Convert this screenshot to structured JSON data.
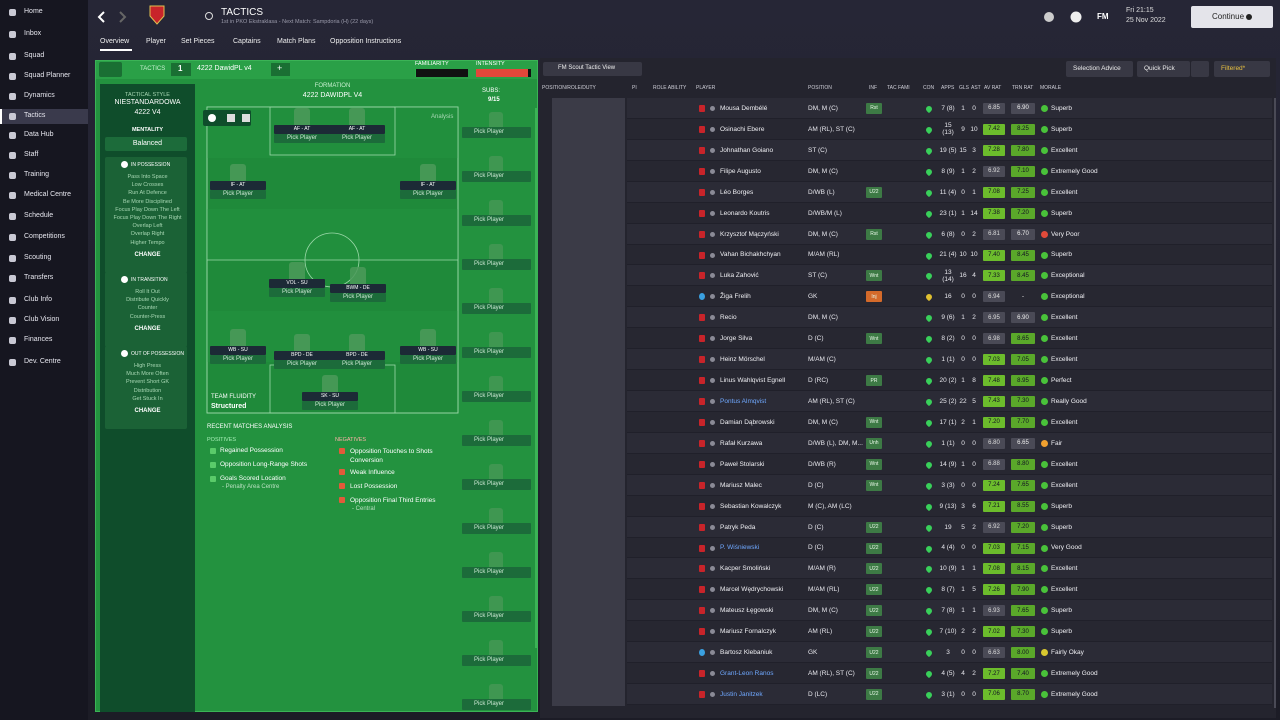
{
  "sidebar": {
    "items": [
      "Home",
      "Inbox",
      "Squad",
      "Squad Planner",
      "Dynamics",
      "Tactics",
      "Data Hub",
      "Staff",
      "Training",
      "Medical Centre",
      "Schedule",
      "Competitions",
      "Scouting",
      "Transfers",
      "Club Info",
      "Club Vision",
      "Finances",
      "Dev. Centre"
    ],
    "active": 5
  },
  "header": {
    "title": "TACTICS",
    "subtitle": "1st in PKO Ekstraklasa - Next Match: Sampdoria (H) (22 days)",
    "logo": "FM",
    "time": "Fri 21:15",
    "date": "25 Nov 2022",
    "continue": "Continue"
  },
  "tabs": {
    "items": [
      "Overview",
      "Player",
      "Set Pieces",
      "Captains",
      "Match Plans",
      "Opposition Instructions"
    ],
    "active": 0
  },
  "tactic_bar": {
    "label": "TACTICS",
    "slot": "1",
    "name": "4222 DawidPL v4",
    "add": "+",
    "familiarity_label": "FAMILIARITY",
    "familiarity": 2,
    "intensity_label": "INTENSITY",
    "intensity": 95
  },
  "style_panel": {
    "tactical_style_label": "TACTICAL STYLE",
    "tactical_style": "NIESTANDARDOWA",
    "tactic_code": "4222 V4",
    "mentality_label": "MENTALITY",
    "mentality": "Balanced",
    "sections": [
      {
        "title": "IN POSSESSION",
        "items": [
          "Pass Into Space",
          "Low Crosses",
          "Run At Defence",
          "Be More Disciplined",
          "Focus Play Down The Left",
          "Focus Play Down The Right",
          "Overlap Left",
          "Overlap Right",
          "Higher Tempo"
        ],
        "button": "CHANGE"
      },
      {
        "title": "IN TRANSITION",
        "items": [
          "Roll It Out",
          "Distribute Quickly",
          "Counter",
          "Counter-Press"
        ],
        "button": "CHANGE"
      },
      {
        "title": "OUT OF POSSESSION",
        "items": [
          "High Press",
          "Much More Often",
          "Prevent Short GK",
          "Distribution",
          "Get Stuck In"
        ],
        "button": "CHANGE"
      }
    ]
  },
  "formation": {
    "label": "FORMATION",
    "name": "4222 DAWIDPL V4",
    "subs_label": "SUBS:",
    "subs_count": "9/15",
    "analysis": "Analysis",
    "positions": [
      {
        "role": "AF - AT",
        "pick": "Pick Player"
      },
      {
        "role": "AF - AT",
        "pick": "Pick Player"
      },
      {
        "role": "IF - AT",
        "pick": "Pick Player"
      },
      {
        "role": "IF - AT",
        "pick": "Pick Player"
      },
      {
        "role": "VOL - SU",
        "pick": "Pick Player"
      },
      {
        "role": "BWM - DE",
        "pick": "Pick Player"
      },
      {
        "role": "WB - SU",
        "pick": "Pick Player"
      },
      {
        "role": "BPD - DE",
        "pick": "Pick Player"
      },
      {
        "role": "BPD - DE",
        "pick": "Pick Player"
      },
      {
        "role": "WB - SU",
        "pick": "Pick Player"
      },
      {
        "role": "SK - SU",
        "pick": "Pick Player"
      }
    ],
    "subs": [
      "Pick Player",
      "Pick Player",
      "Pick Player",
      "Pick Player",
      "Pick Player",
      "Pick Player",
      "Pick Player",
      "Pick Player",
      "Pick Player",
      "Pick Player",
      "Pick Player",
      "Pick Player",
      "Pick Player",
      "Pick Player"
    ],
    "fluidity_label": "TEAM FLUIDITY",
    "fluidity": "Structured"
  },
  "analysis": {
    "title": "RECENT MATCHES ANALYSIS",
    "positives_label": "POSITIVES",
    "positives": [
      {
        "text": "Regained Possession"
      },
      {
        "text": "Opposition Long-Range Shots"
      },
      {
        "text": "Goals Scored Location",
        "detail": "- Penalty Area Centre"
      }
    ],
    "negatives_label": "NEGATIVES",
    "negatives": [
      {
        "text": "Opposition Touches to Shots Conversion"
      },
      {
        "text": "Weak Influence"
      },
      {
        "text": "Lost Possession"
      },
      {
        "text": "Opposition Final Third Entries",
        "detail": "- Central"
      }
    ]
  },
  "squad": {
    "view": "FM Scout Tactic View",
    "buttons": [
      "Selection Advice",
      "Quick Pick",
      "Filtered*"
    ],
    "columns": [
      "POSITION/ROLE/DUTY",
      "PI",
      "ROLE ABILITY",
      "PLAYER",
      "POSITION",
      "INF",
      "TAC FAMI",
      "CON",
      "APPS",
      "GLS",
      "AST",
      "AV RAT",
      "TRN RAT",
      "MORALE"
    ],
    "rows": [
      {
        "name": "Mousa Dembélé",
        "position": "DM, M (C)",
        "inf": "Rst",
        "apps": "7 (8)",
        "gls": "1",
        "ast": "0",
        "av_rat": "6.85",
        "trn_rat": "6.90",
        "morale": "Superb",
        "morale_color": "#49c23a"
      },
      {
        "name": "Osinachi Ebere",
        "position": "AM (RL), ST (C)",
        "apps": "15 (13)",
        "gls": "9",
        "ast": "10",
        "av_rat": "7.42",
        "trn_rat": "8.25",
        "morale": "Superb",
        "morale_color": "#49c23a"
      },
      {
        "name": "Johnathan Goiano",
        "position": "ST (C)",
        "apps": "19 (5)",
        "gls": "15",
        "ast": "3",
        "av_rat": "7.28",
        "trn_rat": "7.80",
        "morale": "Excellent",
        "morale_color": "#49c23a"
      },
      {
        "name": "Filipe Augusto",
        "position": "DM, M (C)",
        "apps": "8 (9)",
        "gls": "1",
        "ast": "2",
        "av_rat": "6.92",
        "trn_rat": "7.10",
        "morale": "Extremely Good",
        "morale_color": "#49c23a"
      },
      {
        "name": "Léo Borges",
        "position": "D/WB (L)",
        "inf": "U22",
        "apps": "11 (4)",
        "gls": "0",
        "ast": "1",
        "av_rat": "7.08",
        "trn_rat": "7.25",
        "morale": "Excellent",
        "morale_color": "#49c23a"
      },
      {
        "name": "Leonardo Koutris",
        "position": "D/WB/M (L)",
        "apps": "23 (1)",
        "gls": "1",
        "ast": "14",
        "av_rat": "7.38",
        "trn_rat": "7.20",
        "morale": "Superb",
        "morale_color": "#49c23a"
      },
      {
        "name": "Krzysztof Mączyński",
        "position": "DM, M (C)",
        "inf": "Rst",
        "apps": "6 (8)",
        "gls": "0",
        "ast": "2",
        "av_rat": "6.81",
        "trn_rat": "6.70",
        "morale": "Very Poor",
        "morale_color": "#e04a3a"
      },
      {
        "name": "Vahan Bichakhchyan",
        "position": "M/AM (RL)",
        "apps": "21 (4)",
        "gls": "10",
        "ast": "10",
        "av_rat": "7.40",
        "trn_rat": "8.45",
        "morale": "Superb",
        "morale_color": "#49c23a"
      },
      {
        "name": "Luka Zahović",
        "position": "ST (C)",
        "inf": "Wnt",
        "apps": "13 (14)",
        "gls": "16",
        "ast": "4",
        "av_rat": "7.33",
        "trn_rat": "8.45",
        "morale": "Exceptional",
        "morale_color": "#49c23a"
      },
      {
        "name": "Žiga Frelih",
        "position": "GK",
        "inf": "Inj",
        "apps": "16",
        "gls": "0",
        "ast": "0",
        "av_rat": "6.94",
        "trn_rat": "-",
        "morale": "Exceptional",
        "morale_color": "#49c23a"
      },
      {
        "name": "Recio",
        "position": "DM, M (C)",
        "apps": "9 (6)",
        "gls": "1",
        "ast": "2",
        "av_rat": "6.95",
        "trn_rat": "6.90",
        "morale": "Excellent",
        "morale_color": "#49c23a"
      },
      {
        "name": "Jorge Silva",
        "position": "D (C)",
        "inf": "Wnt",
        "apps": "8 (2)",
        "gls": "0",
        "ast": "0",
        "av_rat": "6.98",
        "trn_rat": "8.65",
        "morale": "Excellent",
        "morale_color": "#49c23a"
      },
      {
        "name": "Heinz Mörschel",
        "position": "M/AM (C)",
        "apps": "1 (1)",
        "gls": "0",
        "ast": "0",
        "av_rat": "7.03",
        "trn_rat": "7.05",
        "morale": "Excellent",
        "morale_color": "#49c23a"
      },
      {
        "name": "Linus Wahlqvist Egnell",
        "position": "D (RC)",
        "inf": "PR",
        "apps": "20 (2)",
        "gls": "1",
        "ast": "8",
        "av_rat": "7.48",
        "trn_rat": "8.95",
        "morale": "Perfect",
        "morale_color": "#49c23a"
      },
      {
        "name": "Pontus Almqvist",
        "name_color": "#6fa8ff",
        "position": "AM (RL), ST (C)",
        "apps": "25 (2)",
        "gls": "22",
        "ast": "5",
        "av_rat": "7.43",
        "trn_rat": "7.30",
        "morale": "Really Good",
        "morale_color": "#49c23a"
      },
      {
        "name": "Damian Dąbrowski",
        "position": "DM, M (C)",
        "inf": "Wnt",
        "apps": "17 (1)",
        "gls": "2",
        "ast": "1",
        "av_rat": "7.20",
        "trn_rat": "7.70",
        "morale": "Excellent",
        "morale_color": "#49c23a"
      },
      {
        "name": "Rafał Kurzawa",
        "position": "D/WB (L), DM, M...",
        "inf": "Unh",
        "apps": "1 (1)",
        "gls": "0",
        "ast": "0",
        "av_rat": "6.80",
        "trn_rat": "6.65",
        "morale": "Fair",
        "morale_color": "#f0a030"
      },
      {
        "name": "Paweł Stolarski",
        "position": "D/WB (R)",
        "inf": "Wnt",
        "apps": "14 (9)",
        "gls": "1",
        "ast": "0",
        "av_rat": "6.88",
        "trn_rat": "8.80",
        "morale": "Excellent",
        "morale_color": "#49c23a"
      },
      {
        "name": "Mariusz Malec",
        "position": "D (C)",
        "inf": "Wnt",
        "apps": "3 (3)",
        "gls": "0",
        "ast": "0",
        "av_rat": "7.24",
        "trn_rat": "7.65",
        "morale": "Excellent",
        "morale_color": "#49c23a"
      },
      {
        "name": "Sebastian Kowalczyk",
        "position": "M (C), AM (LC)",
        "apps": "9 (13)",
        "gls": "3",
        "ast": "6",
        "av_rat": "7.21",
        "trn_rat": "8.55",
        "morale": "Superb",
        "morale_color": "#49c23a"
      },
      {
        "name": "Patryk Peda",
        "position": "D (C)",
        "inf": "U22",
        "apps": "19",
        "gls": "5",
        "ast": "2",
        "av_rat": "6.92",
        "trn_rat": "7.20",
        "morale": "Superb",
        "morale_color": "#49c23a"
      },
      {
        "name": "P. Wiśniewski",
        "name_color": "#6fa8ff",
        "position": "D (C)",
        "inf": "U22",
        "apps": "4 (4)",
        "gls": "0",
        "ast": "0",
        "av_rat": "7.03",
        "trn_rat": "7.15",
        "morale": "Very Good",
        "morale_color": "#49c23a"
      },
      {
        "name": "Kacper Smoliński",
        "position": "M/AM (R)",
        "inf": "U22",
        "apps": "10 (9)",
        "gls": "1",
        "ast": "1",
        "av_rat": "7.08",
        "trn_rat": "8.15",
        "morale": "Excellent",
        "morale_color": "#49c23a"
      },
      {
        "name": "Marcel Wędrychowski",
        "position": "M/AM (RL)",
        "inf": "U22",
        "apps": "8 (7)",
        "gls": "1",
        "ast": "5",
        "av_rat": "7.26",
        "trn_rat": "7.90",
        "morale": "Excellent",
        "morale_color": "#49c23a"
      },
      {
        "name": "Mateusz Łęgowski",
        "position": "DM, M (C)",
        "inf": "U22",
        "apps": "7 (8)",
        "gls": "1",
        "ast": "1",
        "av_rat": "6.93",
        "trn_rat": "7.65",
        "morale": "Superb",
        "morale_color": "#49c23a"
      },
      {
        "name": "Mariusz Fornalczyk",
        "position": "AM (RL)",
        "inf": "U22",
        "apps": "7 (10)",
        "gls": "2",
        "ast": "2",
        "av_rat": "7.02",
        "trn_rat": "7.30",
        "morale": "Superb",
        "morale_color": "#49c23a"
      },
      {
        "name": "Bartosz Klebaniuk",
        "position": "GK",
        "inf": "U22",
        "apps": "3",
        "gls": "0",
        "ast": "0",
        "av_rat": "6.63",
        "trn_rat": "8.00",
        "morale": "Fairly Okay",
        "morale_color": "#d8c830"
      },
      {
        "name": "Grant-Leon Ranos",
        "name_color": "#6fa8ff",
        "position": "AM (RL), ST (C)",
        "inf": "U22",
        "apps": "4 (5)",
        "gls": "4",
        "ast": "2",
        "av_rat": "7.27",
        "trn_rat": "7.40",
        "morale": "Extremely Good",
        "morale_color": "#49c23a"
      },
      {
        "name": "Justin Janitzek",
        "name_color": "#6fa8ff",
        "position": "D (LC)",
        "inf": "U22",
        "apps": "3 (1)",
        "gls": "0",
        "ast": "0",
        "av_rat": "7.06",
        "trn_rat": "8.70",
        "morale": "Extremely Good",
        "morale_color": "#49c23a"
      }
    ]
  }
}
